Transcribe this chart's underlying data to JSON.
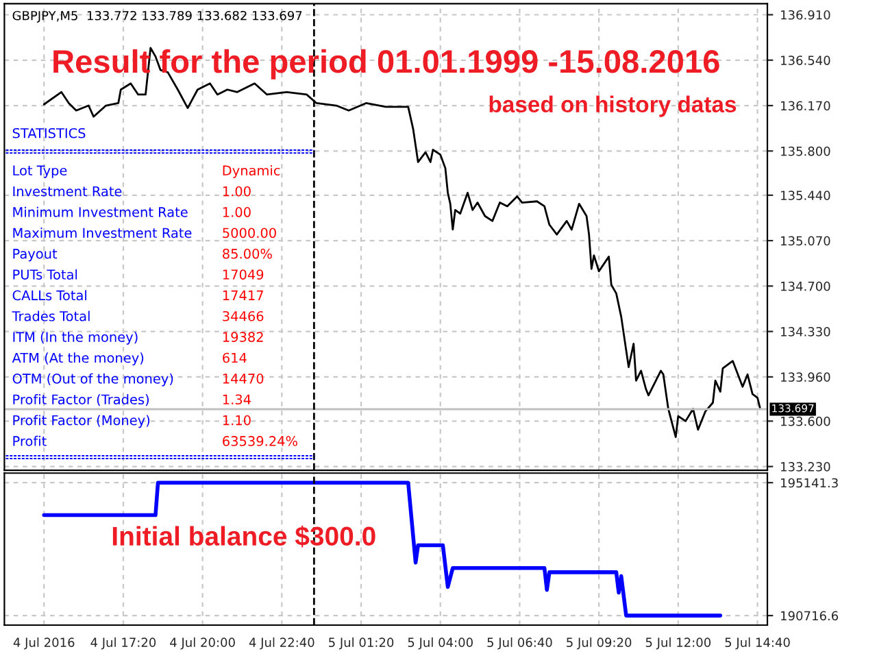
{
  "chart_data": [
    {
      "type": "line",
      "title": "Result for the period 01.01.1999 -15.08.2016",
      "subtitle": "based on history datas",
      "annotations": [
        "GBPJPY,M5  133.772 133.789 133.682 133.697",
        "STATISTICS",
        "Lot Type",
        "Dynamic",
        "Investment Rate",
        "1.00",
        "Minimum Investment Rate",
        "1.00",
        "Maximum Investment Rate",
        "5000.00",
        "Payout",
        "85.00%",
        "PUTs Total",
        "17049",
        "CALLs Total",
        "17417",
        "Trades Total",
        "34466",
        "ITM (In the money)",
        "19382",
        "ATM (At the money)",
        "614",
        "OTM (Out of the money)",
        "14470",
        "Profit Factor (Trades)",
        "1.34",
        "Profit Factor (Money)",
        "1.10",
        "Profit",
        "63539.24%"
      ],
      "series": [
        {
          "color": "#000000",
          "x": [
            "2016-07-04T14:40",
            "2016-07-04T15:15",
            "2016-07-04T15:30",
            "2016-07-04T15:45",
            "2016-07-04T16:10",
            "2016-07-04T16:20",
            "2016-07-04T16:45",
            "2016-07-04T17:10",
            "2016-07-04T17:15",
            "2016-07-04T17:35",
            "2016-07-04T17:50",
            "2016-07-04T18:05",
            "2016-07-04T18:15",
            "2016-07-04T18:25",
            "2016-07-04T18:35",
            "2016-07-04T18:50",
            "2016-07-04T19:10",
            "2016-07-04T19:30",
            "2016-07-04T19:50",
            "2016-07-04T20:15",
            "2016-07-04T20:30",
            "2016-07-04T20:50",
            "2016-07-04T21:10",
            "2016-07-04T21:45",
            "2016-07-04T22:10",
            "2016-07-04T22:50",
            "2016-07-04T23:30",
            "2016-07-04T23:50",
            "2016-07-05T00:30",
            "2016-07-05T00:55",
            "2016-07-05T01:30",
            "2016-07-05T02:10",
            "2016-07-05T02:55",
            "2016-07-05T03:05",
            "2016-07-05T03:15",
            "2016-07-05T03:30",
            "2016-07-05T03:40",
            "2016-07-05T03:45",
            "2016-07-05T04:00",
            "2016-07-05T04:10",
            "2016-07-05T04:15",
            "2016-07-05T04:20",
            "2016-07-05T04:25",
            "2016-07-05T04:30",
            "2016-07-05T04:40",
            "2016-07-05T04:55",
            "2016-07-05T05:05",
            "2016-07-05T05:15",
            "2016-07-05T05:30",
            "2016-07-05T05:45",
            "2016-07-05T06:00",
            "2016-07-05T06:15",
            "2016-07-05T06:35",
            "2016-07-05T06:45",
            "2016-07-05T07:15",
            "2016-07-05T07:30",
            "2016-07-05T07:40",
            "2016-07-05T07:55",
            "2016-07-05T08:15",
            "2016-07-05T08:25",
            "2016-07-05T08:40",
            "2016-07-05T08:55",
            "2016-07-05T09:00",
            "2016-07-05T09:05",
            "2016-07-05T09:10",
            "2016-07-05T09:20",
            "2016-07-05T09:40",
            "2016-07-05T09:45",
            "2016-07-05T09:55",
            "2016-07-05T10:05",
            "2016-07-05T10:20",
            "2016-07-05T10:30",
            "2016-07-05T10:35",
            "2016-07-05T10:45",
            "2016-07-05T10:55",
            "2016-07-05T11:00",
            "2016-07-05T11:25",
            "2016-07-05T11:30",
            "2016-07-05T11:40",
            "2016-07-05T11:55",
            "2016-07-05T12:00",
            "2016-07-05T12:15",
            "2016-07-05T12:30",
            "2016-07-05T12:40",
            "2016-07-05T12:55",
            "2016-07-05T13:10",
            "2016-07-05T13:15",
            "2016-07-05T13:25",
            "2016-07-05T13:30",
            "2016-07-05T13:50",
            "2016-07-05T14:10",
            "2016-07-05T14:20",
            "2016-07-05T14:30",
            "2016-07-05T14:40",
            "2016-07-05T14:45"
          ],
          "values": [
            136.18,
            136.28,
            136.19,
            136.13,
            136.17,
            136.08,
            136.17,
            136.19,
            136.3,
            136.35,
            136.26,
            136.26,
            136.64,
            136.57,
            136.46,
            136.44,
            136.3,
            136.15,
            136.3,
            136.35,
            136.26,
            136.3,
            136.28,
            136.35,
            136.26,
            136.28,
            136.26,
            136.19,
            136.17,
            136.13,
            136.19,
            136.16,
            136.16,
            135.98,
            135.71,
            135.79,
            135.71,
            135.81,
            135.77,
            135.66,
            135.46,
            135.37,
            135.16,
            135.32,
            135.29,
            135.46,
            135.32,
            135.38,
            135.27,
            135.23,
            135.38,
            135.35,
            135.43,
            135.38,
            135.39,
            135.35,
            135.2,
            135.12,
            135.23,
            135.16,
            135.37,
            135.27,
            135.12,
            134.84,
            134.95,
            134.82,
            134.94,
            134.71,
            134.64,
            134.45,
            134.04,
            134.23,
            133.93,
            134.01,
            133.86,
            133.81,
            134.01,
            133.98,
            133.7,
            133.47,
            133.64,
            133.6,
            133.7,
            133.53,
            133.68,
            133.75,
            133.93,
            133.84,
            134.03,
            134.09,
            133.88,
            133.98,
            133.82,
            133.79,
            133.71
          ]
        }
      ],
      "xlim": [
        "2016-07-04T13:20",
        "2016-07-05T15:00"
      ],
      "xticks": [
        {
          "value": "2016-07-04T14:40",
          "label": null
        },
        {
          "value": "2016-07-04T17:20",
          "label": null
        },
        {
          "value": "2016-07-04T20:00",
          "label": null
        },
        {
          "value": "2016-07-04T22:40",
          "label": null
        },
        {
          "value": "2016-07-05T01:20",
          "label": null
        },
        {
          "value": "2016-07-05T04:00",
          "label": null
        },
        {
          "value": "2016-07-05T06:40",
          "label": null
        },
        {
          "value": "2016-07-05T09:20",
          "label": null
        },
        {
          "value": "2016-07-05T12:00",
          "label": null
        },
        {
          "value": "2016-07-05T14:40",
          "label": null
        }
      ],
      "ylim": [
        133.2,
        137.0
      ],
      "yticks": [
        {
          "value": 136.91,
          "label": "136.910"
        },
        {
          "value": 136.54,
          "label": "136.540"
        },
        {
          "value": 136.17,
          "label": "136.170"
        },
        {
          "value": 135.8,
          "label": "135.800"
        },
        {
          "value": 135.44,
          "label": "135.440"
        },
        {
          "value": 135.07,
          "label": "135.070"
        },
        {
          "value": 134.7,
          "label": "134.700"
        },
        {
          "value": 134.33,
          "label": "134.330"
        },
        {
          "value": 133.96,
          "label": "133.960"
        },
        {
          "value": 133.6,
          "label": "133.600"
        },
        {
          "value": 133.23,
          "label": "133.230"
        }
      ],
      "ref_lines": [
        {
          "axis": "y",
          "value": 133.697,
          "label": "133.697",
          "color": "#c0c0c0"
        },
        {
          "axis": "x",
          "value": "2016-07-04T23:45",
          "color": "#000000",
          "line_style": "dashed"
        }
      ],
      "tick_labels": "y",
      "grid": true,
      "line_style": "solid",
      "marker": "none"
    },
    {
      "type": "line",
      "annotations": [
        "Initial balance $300.0"
      ],
      "series": [
        {
          "color": "#0000ff",
          "x": [
            "2016-07-04T14:40",
            "2016-07-04T18:25",
            "2016-07-04T18:30",
            "2016-07-05T02:55",
            "2016-07-05T03:10",
            "2016-07-05T03:15",
            "2016-07-05T04:05",
            "2016-07-05T04:15",
            "2016-07-05T04:25",
            "2016-07-05T07:30",
            "2016-07-05T07:35",
            "2016-07-05T07:40",
            "2016-07-05T09:55",
            "2016-07-05T10:00",
            "2016-07-05T10:05",
            "2016-07-05T10:15",
            "2016-07-05T13:25"
          ],
          "values": [
            194060,
            194060,
            195141.3,
            195141.3,
            192480,
            193060,
            193060,
            191670,
            192300,
            192300,
            191570,
            192160,
            192160,
            191480,
            192030,
            190716.6,
            190716.6
          ]
        }
      ],
      "xlim": [
        "2016-07-04T13:20",
        "2016-07-05T15:00"
      ],
      "xticks": [
        {
          "value": "2016-07-04T14:40",
          "label": "4 Jul 2016"
        },
        {
          "value": "2016-07-04T17:20",
          "label": "4 Jul 17:20"
        },
        {
          "value": "2016-07-04T20:00",
          "label": "4 Jul 20:00"
        },
        {
          "value": "2016-07-04T22:40",
          "label": "4 Jul 22:40"
        },
        {
          "value": "2016-07-05T01:20",
          "label": "5 Jul 01:20"
        },
        {
          "value": "2016-07-05T04:00",
          "label": "5 Jul 04:00"
        },
        {
          "value": "2016-07-05T06:40",
          "label": "5 Jul 06:40"
        },
        {
          "value": "2016-07-05T09:20",
          "label": "5 Jul 09:20"
        },
        {
          "value": "2016-07-05T12:00",
          "label": "5 Jul 12:00"
        },
        {
          "value": "2016-07-05T14:40",
          "label": "5 Jul 14:40"
        }
      ],
      "ylim": [
        190400,
        195460
      ],
      "yticks": [
        195141.3,
        190716.6
      ],
      "ref_lines": [
        {
          "axis": "x",
          "value": "2016-07-04T23:45",
          "color": "#000000",
          "line_style": "dashed"
        }
      ],
      "grid": true,
      "line_style": "solid",
      "marker": "none"
    }
  ]
}
